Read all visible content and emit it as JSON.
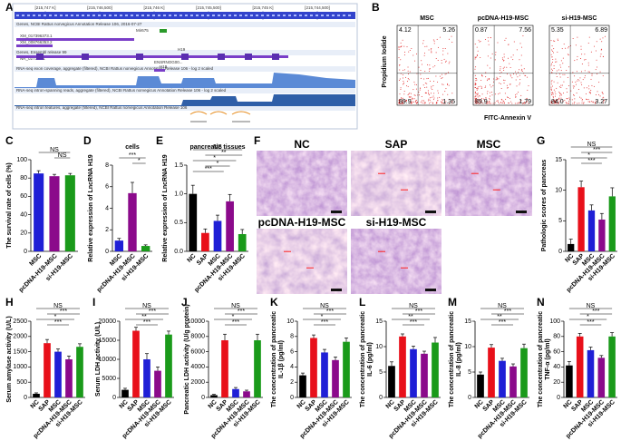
{
  "panel_labels": [
    "A",
    "B",
    "C",
    "D",
    "E",
    "F",
    "G",
    "H",
    "I",
    "J",
    "K",
    "L",
    "M",
    "N"
  ],
  "panel_a": {
    "ruler": [
      "[215,747 K]",
      "[215,746,500]",
      "[215,746 K]",
      "[215,745,500]",
      "[215,745 K]",
      "[215,744,500]"
    ],
    "tracks": [
      "Genes, NCBI Rattus norvegicus Annotation Release 106, 2016-07-27",
      "Genes, Ensembl release 99",
      "RNA-seq exon coverage, aggregate (filtered), NCBI Rattus norvegicus Annotation Release 106 - log 2 scaled",
      "RNA-seq intron-spanning reads, aggregate (filtered), NCBI Rattus norvegicus Annotation Release 106 - log 2 scaled",
      "RNA-seq intron features, aggregate (filtered), NCBI Rattus norvegicus Annotation Release 106"
    ],
    "genes": [
      "Mir675",
      "XM_017396373.1",
      "XM_008766353.2",
      "H19",
      "NR_027324.1",
      "ENSRNOG00...",
      "H19"
    ]
  },
  "panel_b": {
    "ylabel": "Propidium Iodide",
    "xlabel": "FITC-Annexin V",
    "plots": [
      {
        "title": "MSC",
        "quadrants": [
          "4.12",
          "5.26",
          "89.9",
          "1.35"
        ]
      },
      {
        "title": "pcDNA-H19-MSC",
        "quadrants": [
          "0.87",
          "7.56",
          "89.9",
          "1.79"
        ]
      },
      {
        "title": "si-H19-MSC",
        "quadrants": [
          "5.35",
          "6.89",
          "84.0",
          "3.27"
        ]
      }
    ]
  },
  "panel_f": {
    "labels": [
      "NC",
      "SAP",
      "MSC",
      "pcDNA-H19-MSC",
      "si-H19-MSC"
    ]
  },
  "chart_data": [
    {
      "type": "bar",
      "ylabel": "The survival rate of cells (%)",
      "categories": [
        "MSC",
        "pcDNA-H19-MSC",
        "si-H19-MSC"
      ],
      "values": [
        85,
        82,
        83
      ],
      "errors": [
        3,
        2,
        2
      ],
      "colors": [
        "#1f1fd6",
        "#8b0a8b",
        "#1a9a1a"
      ],
      "ylim": [
        0,
        100
      ],
      "yticks": [
        0,
        20,
        40,
        60,
        80,
        100
      ],
      "annotations": [
        "NS",
        "NS"
      ]
    },
    {
      "type": "bar",
      "title": "cells",
      "ylabel": "Relative expression of LncRNA H19",
      "categories": [
        "MSC",
        "pcDNA-H19-MSC",
        "si-H19-MSC"
      ],
      "values": [
        1.0,
        5.4,
        0.5
      ],
      "errors": [
        0.2,
        1.0,
        0.1
      ],
      "colors": [
        "#1f1fd6",
        "#8b0a8b",
        "#1a9a1a"
      ],
      "ylim": [
        0,
        8
      ],
      "yticks": [
        0,
        2,
        4,
        6,
        8
      ],
      "annotations": [
        "***",
        "*"
      ]
    },
    {
      "type": "bar",
      "title": "pancreatic tissues",
      "ylabel": "Relative expression of LncRNA H19",
      "categories": [
        "NC",
        "SAP",
        "MSC",
        "pcDNA-H19-MSC",
        "si-H19-MSC"
      ],
      "values": [
        1.0,
        0.32,
        0.53,
        0.87,
        0.3
      ],
      "errors": [
        0.15,
        0.07,
        0.1,
        0.12,
        0.08
      ],
      "colors": [
        "#000000",
        "#e8101a",
        "#1f1fd6",
        "#8b0a8b",
        "#1a9a1a"
      ],
      "ylim": [
        0,
        1.5
      ],
      "yticks": [
        {
          "value": 0,
          "label": "0.0"
        },
        {
          "value": 0.5,
          "label": "0.5"
        },
        {
          "value": 1,
          "label": "1.0"
        },
        {
          "value": 1.5,
          "label": "1.5"
        }
      ],
      "annotations": [
        "NS",
        "**",
        "*",
        "*",
        "***"
      ]
    },
    {
      "type": "bar",
      "ylabel": "Pathologic scores of pancreas",
      "categories": [
        "NC",
        "SAP",
        "MSC",
        "pcDNA-H19-MSC",
        "si-H19-MSC"
      ],
      "values": [
        1.2,
        10.5,
        6.7,
        5.2,
        9.0
      ],
      "errors": [
        0.8,
        1.0,
        0.9,
        1.0,
        1.4
      ],
      "colors": [
        "#000000",
        "#e8101a",
        "#1f1fd6",
        "#8b0a8b",
        "#1a9a1a"
      ],
      "ylim": [
        0,
        15
      ],
      "yticks": [
        0,
        5,
        10,
        15
      ],
      "annotations": [
        "NS",
        "***",
        "*",
        "***"
      ]
    },
    {
      "type": "bar",
      "ylabel": "Serum amylase activity (U/L)",
      "categories": [
        "NC",
        "SAP",
        "MSC",
        "pcDNA-H19-MSC",
        "si-H19-MSC"
      ],
      "values": [
        120,
        1780,
        1500,
        1250,
        1660
      ],
      "errors": [
        30,
        120,
        90,
        110,
        100
      ],
      "colors": [
        "#000000",
        "#e8101a",
        "#1f1fd6",
        "#8b0a8b",
        "#1a9a1a"
      ],
      "ylim": [
        0,
        2500
      ],
      "yticks": [
        0,
        500,
        1000,
        1500,
        2000,
        2500
      ],
      "annotations": [
        "NS",
        "***",
        "*",
        "***"
      ]
    },
    {
      "type": "bar",
      "ylabel": "Serum LDH activity (U/L)",
      "categories": [
        "NC",
        "SAP",
        "MSC",
        "pcDNA-H19-MSC",
        "si-H19-MSC"
      ],
      "values": [
        2000,
        17500,
        10000,
        7000,
        16500
      ],
      "errors": [
        400,
        900,
        1500,
        1000,
        900
      ],
      "colors": [
        "#000000",
        "#e8101a",
        "#1f1fd6",
        "#8b0a8b",
        "#1a9a1a"
      ],
      "ylim": [
        0,
        20000
      ],
      "yticks": [
        0,
        5000,
        10000,
        15000,
        20000
      ],
      "annotations": [
        "NS",
        "***",
        "**",
        "***"
      ]
    },
    {
      "type": "bar",
      "ylabel": "Pancreatic LDH activity (U/g protein)",
      "categories": [
        "NC",
        "SAP",
        "MSC",
        "pcDNA-H19-MSC",
        "si-H19-MSC"
      ],
      "values": [
        300,
        7500,
        1100,
        800,
        7500
      ],
      "errors": [
        100,
        800,
        200,
        150,
        800
      ],
      "colors": [
        "#000000",
        "#e8101a",
        "#1f1fd6",
        "#8b0a8b",
        "#1a9a1a"
      ],
      "ylim": [
        0,
        10000
      ],
      "yticks": [
        0,
        2000,
        4000,
        6000,
        8000,
        10000
      ],
      "annotations": [
        "NS",
        "***",
        "*",
        "***"
      ]
    },
    {
      "type": "bar",
      "ylabel": [
        "The concentration of pancreatic",
        "IL-1β (pg/ml)"
      ],
      "categories": [
        "NC",
        "SAP",
        "MSC",
        "pcDNA-H19-MSC",
        "si-H19-MSC"
      ],
      "values": [
        2.9,
        7.8,
        5.9,
        4.9,
        7.3
      ],
      "errors": [
        0.3,
        0.4,
        0.4,
        0.4,
        0.5
      ],
      "colors": [
        "#000000",
        "#e8101a",
        "#1f1fd6",
        "#8b0a8b",
        "#1a9a1a"
      ],
      "ylim": [
        0,
        10
      ],
      "yticks": [
        0,
        2,
        4,
        6,
        8,
        10
      ],
      "annotations": [
        "NS",
        "***",
        "*",
        "***"
      ]
    },
    {
      "type": "bar",
      "ylabel": [
        "The concentration of pancreatic",
        "IL-6 (pg/ml)"
      ],
      "categories": [
        "NC",
        "SAP",
        "MSC",
        "pcDNA-H19-MSC",
        "si-H19-MSC"
      ],
      "values": [
        6.2,
        12,
        9.5,
        8.6,
        10.8
      ],
      "errors": [
        0.8,
        0.5,
        0.6,
        0.5,
        1.0
      ],
      "colors": [
        "#000000",
        "#e8101a",
        "#1f1fd6",
        "#8b0a8b",
        "#1a9a1a"
      ],
      "ylim": [
        0,
        15
      ],
      "yticks": [
        0,
        5,
        10,
        15
      ],
      "annotations": [
        "NS",
        "***",
        "**",
        "***"
      ]
    },
    {
      "type": "bar",
      "ylabel": [
        "The concentration of pancreatic",
        "IL-8 (pg/ml)"
      ],
      "categories": [
        "NC",
        "SAP",
        "MSC",
        "pcDNA-H19-MSC",
        "si-H19-MSC"
      ],
      "values": [
        4.5,
        9.8,
        7.2,
        6.1,
        9.7
      ],
      "errors": [
        0.5,
        0.6,
        0.5,
        0.5,
        0.8
      ],
      "colors": [
        "#000000",
        "#e8101a",
        "#1f1fd6",
        "#8b0a8b",
        "#1a9a1a"
      ],
      "ylim": [
        0,
        15
      ],
      "yticks": [
        0,
        5,
        10,
        15
      ],
      "annotations": [
        "NS",
        "***",
        "**",
        "***"
      ]
    },
    {
      "type": "bar",
      "ylabel": [
        "The concentration of pancreatic",
        "TNF-α (pg/ml)"
      ],
      "categories": [
        "NC",
        "SAP",
        "MSC",
        "pcDNA-H19-MSC",
        "si-H19-MSC"
      ],
      "values": [
        42,
        80,
        62,
        52,
        80
      ],
      "errors": [
        5,
        4,
        4,
        3,
        5
      ],
      "colors": [
        "#000000",
        "#e8101a",
        "#1f1fd6",
        "#8b0a8b",
        "#1a9a1a"
      ],
      "ylim": [
        0,
        100
      ],
      "yticks": [
        0,
        20,
        40,
        60,
        80,
        100
      ],
      "annotations": [
        "NS",
        "***",
        "*",
        "***"
      ]
    }
  ]
}
